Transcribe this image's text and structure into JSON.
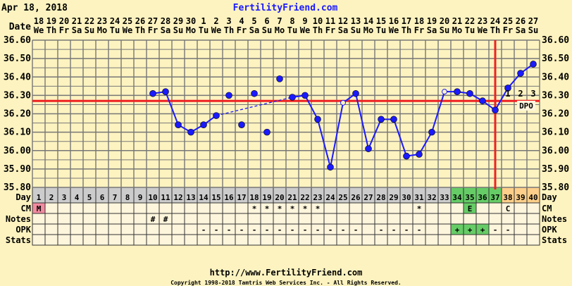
{
  "header": {
    "date": "Apr 18, 2018",
    "site": "FertilityFriend.com",
    "date_label": "Date"
  },
  "footer": {
    "url": "http://www.FertilityFriend.com",
    "copyright": "Copyright 1998-2018 Tamtris Web Services Inc. - All Rights Reserved."
  },
  "row_labels": {
    "day": "Day",
    "cm": "CM",
    "notes": "Notes",
    "opk": "OPK",
    "stats": "Stats"
  },
  "colors": {
    "line": "#1a1aff",
    "coverline": "#ee2222",
    "ovulation": "#ee2222",
    "menses": "#f38aa0",
    "fertile": "#66cc66",
    "luteal": "#fdcf8a",
    "day_row": "#cccccc",
    "grid": "#777777"
  },
  "chart_data": {
    "type": "line",
    "title": "",
    "ylabel": "",
    "ylim": [
      35.8,
      36.6
    ],
    "yticks": [
      "36.60",
      "36.50",
      "36.40",
      "36.30",
      "36.20",
      "36.10",
      "36.00",
      "35.90",
      "35.80"
    ],
    "grid": true,
    "coverline": 36.27,
    "ovulation_cycle_day": 37,
    "dpo_labels": [
      "1",
      "2",
      "3"
    ],
    "dpo_text": "DPO",
    "dates": [
      "18",
      "19",
      "20",
      "21",
      "22",
      "23",
      "24",
      "25",
      "26",
      "27",
      "28",
      "29",
      "30",
      "1",
      "2",
      "3",
      "4",
      "5",
      "6",
      "7",
      "8",
      "9",
      "10",
      "11",
      "12",
      "13",
      "14",
      "15",
      "16",
      "17",
      "18",
      "19",
      "20",
      "21",
      "22",
      "23",
      "24",
      "25",
      "26",
      "27"
    ],
    "weekdays": [
      "We",
      "Th",
      "Fr",
      "Sa",
      "Su",
      "Mo",
      "Tu",
      "We",
      "Th",
      "Fr",
      "Sa",
      "Su",
      "Mo",
      "Tu",
      "We",
      "Th",
      "Fr",
      "Sa",
      "Su",
      "Mo",
      "Tu",
      "We",
      "Th",
      "Fr",
      "Sa",
      "Su",
      "Mo",
      "Tu",
      "We",
      "Th",
      "Fr",
      "Sa",
      "Su",
      "Mo",
      "Tu",
      "We",
      "Th",
      "Fr",
      "Sa",
      "Su"
    ],
    "cycle_days": [
      "1",
      "2",
      "3",
      "4",
      "5",
      "6",
      "7",
      "8",
      "9",
      "10",
      "11",
      "12",
      "13",
      "14",
      "15",
      "16",
      "17",
      "18",
      "19",
      "20",
      "21",
      "22",
      "23",
      "24",
      "25",
      "26",
      "27",
      "28",
      "29",
      "30",
      "31",
      "32",
      "33",
      "34",
      "35",
      "36",
      "37",
      "38",
      "39",
      "40"
    ],
    "temps": [
      null,
      null,
      null,
      null,
      null,
      null,
      null,
      null,
      null,
      36.31,
      36.32,
      36.14,
      36.1,
      36.14,
      36.19,
      36.3,
      36.14,
      36.31,
      36.1,
      36.39,
      36.29,
      36.3,
      36.17,
      35.91,
      36.26,
      36.31,
      36.01,
      36.17,
      36.17,
      35.97,
      35.98,
      36.1,
      36.32,
      36.32,
      36.31,
      36.27,
      36.22,
      36.34,
      36.42,
      36.47
    ],
    "open_points": [
      25,
      33
    ],
    "solid_segments": [
      [
        10,
        15
      ],
      [
        21,
        40
      ]
    ],
    "dashed_segments": [
      [
        15,
        21
      ]
    ],
    "cm": {
      "1": "M",
      "18": "*",
      "19": "*",
      "20": "*",
      "21": "*",
      "22": "*",
      "23": "*",
      "31": "*",
      "35": "E",
      "38": "C"
    },
    "notes": {
      "10": "#",
      "11": "#"
    },
    "opk": {
      "14": "-",
      "15": "-",
      "16": "-",
      "17": "-",
      "18": "-",
      "19": "-",
      "20": "-",
      "21": "-",
      "22": "-",
      "23": "-",
      "24": "-",
      "25": "-",
      "26": "-",
      "28": "-",
      "29": "-",
      "30": "-",
      "31": "-",
      "34": "+",
      "35": "+",
      "36": "+",
      "37": "-",
      "38": "-"
    },
    "fertile_days": [
      34,
      35,
      36,
      37
    ],
    "luteal_days": [
      38,
      39,
      40
    ],
    "cm_fertile_days": [
      35
    ],
    "opk_positive_days": [
      34,
      35,
      36
    ]
  }
}
